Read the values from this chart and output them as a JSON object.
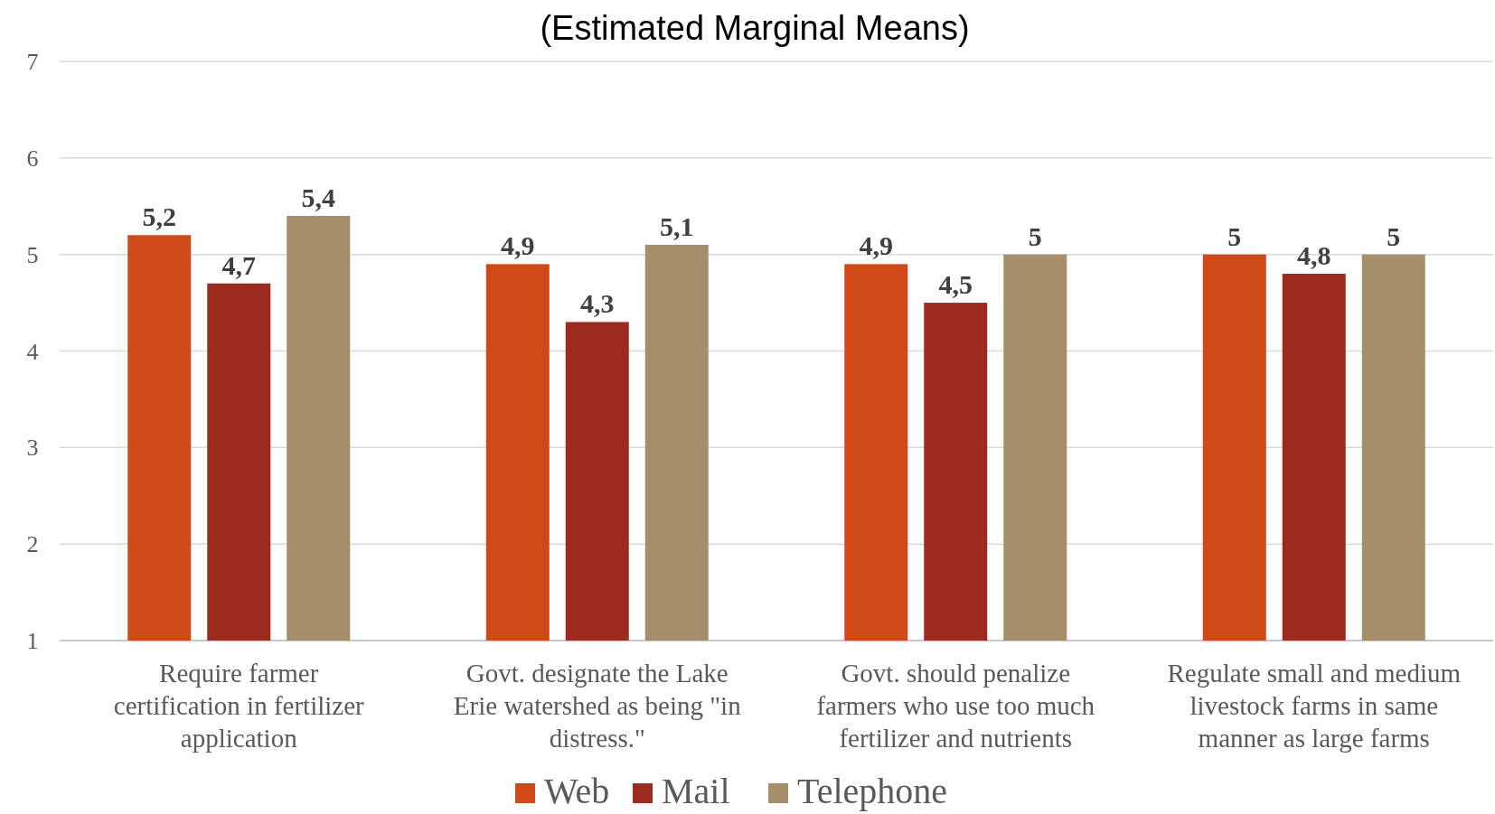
{
  "chart_data": {
    "type": "bar",
    "title": "(Estimated Marginal Means)",
    "categories": [
      "Require farmer certification in fertilizer application",
      "Govt. designate the Lake Erie watershed as being \"in distress.\"",
      "Govt. should penalize farmers who use too much fertilizer and nutrients",
      "Regulate small and medium livestock farms in same manner as large farms"
    ],
    "series": [
      {
        "name": "Web",
        "color": "#d04a18",
        "values": [
          5.2,
          4.9,
          4.9,
          5
        ],
        "value_labels": [
          "5,2",
          "4,9",
          "4,9",
          "5"
        ]
      },
      {
        "name": "Mail",
        "color": "#9b2b1f",
        "values": [
          4.7,
          4.3,
          4.5,
          4.8
        ],
        "value_labels": [
          "4,7",
          "4,3",
          "4,5",
          "4,8"
        ]
      },
      {
        "name": "Telephone",
        "color": "#a58f6b",
        "values": [
          5.4,
          5.1,
          5,
          5
        ],
        "value_labels": [
          "5,4",
          "5,1",
          "5",
          "5"
        ]
      }
    ],
    "ylim": [
      1,
      7
    ],
    "yticks": [
      1,
      2,
      3,
      4,
      5,
      6,
      7
    ],
    "grid": "y",
    "legend": "bottom"
  }
}
